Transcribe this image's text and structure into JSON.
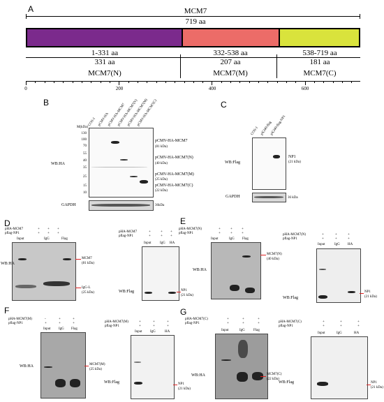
{
  "colors": {
    "n_domain": "#7b2a8c",
    "m_domain": "#ec6c68",
    "c_domain": "#d9e33c",
    "marker": "#d22222"
  },
  "panel_a": {
    "letter": "A",
    "protein": "MCM7",
    "length": "719 aa",
    "domains": [
      {
        "range": "1-331 aa",
        "length": "331 aa",
        "name": "MCM7(N)"
      },
      {
        "range": "332-538 aa",
        "length": "207 aa",
        "name": "MCM7(M)"
      },
      {
        "range": "538-719 aa",
        "length": "181 aa",
        "name": "MCM7(C)"
      }
    ],
    "axis_ticks": [
      "0",
      "200",
      "400",
      "600"
    ]
  },
  "panel_b": {
    "letter": "B",
    "lanes": [
      "COS-1",
      "pCMV-HA",
      "pCMV-HA-MCM7",
      "pCMV-HA-MCM7(N)",
      "pCMV-HA-MCM7(M)",
      "pCMV-HA-MCM7(C)"
    ],
    "mw_header": "M(kDa)",
    "mw": [
      "130",
      "100",
      "70",
      "55",
      "40",
      "35",
      "25",
      "15",
      "10"
    ],
    "wb": "WB:HA",
    "loading": "GAPDH",
    "loading_size": "36kDa",
    "labels": [
      {
        "name": "pCMV-HA-MCM7",
        "size": "(81 kDa)"
      },
      {
        "name": "pCMV-HA-MCM7(N)",
        "size": "(40 kDa)"
      },
      {
        "name": "pCMV-HA-MCM7(M)",
        "size": "(25 kDa)"
      },
      {
        "name": "pCMV-HA-MCM7(C)",
        "size": "(22 kDa)"
      }
    ]
  },
  "panel_c": {
    "letter": "C",
    "lanes": [
      "COS-1",
      "pX340-flag",
      "pX340-flag-NP1"
    ],
    "wb": "WB:Flag",
    "np1": "NP1",
    "np1_size": "(21 kDa)",
    "loading": "GAPDH",
    "loading_size": "36 kDa"
  },
  "co_ip": {
    "col_headers": [
      "Input",
      "IgG",
      "Flag",
      "HA"
    ],
    "pflag": "pflag-NP1",
    "wb_ha": "WB:HA",
    "wb_flag": "WB:Flag",
    "np1": "NP1",
    "np1_size": "(21 kDa)",
    "d": {
      "letter": "D",
      "construct": "pHA-MCM7",
      "target": "MCM7",
      "target_size": "(81 kDa)",
      "igg": "IgG-L",
      "igg_size": "(25 kDa)"
    },
    "e": {
      "letter": "E",
      "construct": "pHA-MCM7(N)",
      "target": "MCM7(N)",
      "target_size": "(40 kDa)"
    },
    "f": {
      "letter": "F",
      "construct": "pHA-MCM7(M)",
      "target": "MCM7(M)",
      "target_size": "(25 kDa)"
    },
    "g": {
      "letter": "G",
      "construct": "pHA-MCM7(C)",
      "target": "MCM7(C)",
      "target_size": "(22 kDa)"
    },
    "plus": "+",
    "minus": "-"
  }
}
